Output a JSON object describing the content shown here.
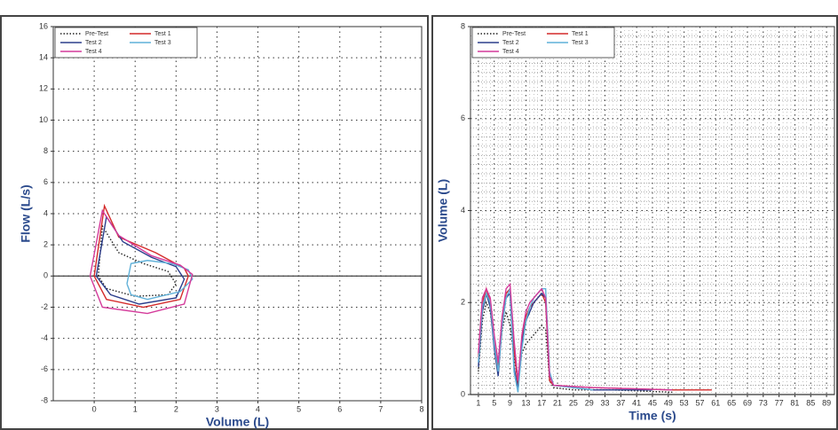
{
  "chart_data": [
    {
      "type": "line",
      "xlabel": "Volume (L)",
      "ylabel": "Flow (L/s)",
      "xlim": [
        -1,
        8
      ],
      "ylim": [
        -8,
        16
      ],
      "xticks": [
        0,
        1,
        2,
        3,
        4,
        5,
        6,
        7,
        8
      ],
      "yticks": [
        -8,
        -6,
        -4,
        -2,
        0,
        2,
        4,
        6,
        8,
        10,
        12,
        14,
        16
      ],
      "grid": true,
      "minor_grid": false,
      "legend": "upper-left",
      "series": [
        {
          "name": "Pre-Test",
          "color": "#222222",
          "style": "dotted",
          "x": [
            0.1,
            0.2,
            0.6,
            1.2,
            1.8,
            2.0,
            1.8,
            1.0,
            0.3,
            0.1
          ],
          "y": [
            0,
            3.2,
            1.5,
            0.8,
            0.3,
            -0.5,
            -1.2,
            -1.3,
            -0.8,
            0
          ]
        },
        {
          "name": "Test 1",
          "color": "#d42a2a",
          "style": "solid",
          "x": [
            0,
            0.25,
            0.6,
            1.5,
            2.2,
            2.3,
            2.1,
            1.2,
            0.3,
            0
          ],
          "y": [
            0,
            4.5,
            2.5,
            1.5,
            0.5,
            0,
            -1.5,
            -2.0,
            -1.5,
            0
          ]
        },
        {
          "name": "Test 2",
          "color": "#2c3e8c",
          "style": "solid",
          "x": [
            0.05,
            0.3,
            0.7,
            1.4,
            2.0,
            2.2,
            2.0,
            1.1,
            0.4,
            0.05
          ],
          "y": [
            0,
            3.8,
            2.2,
            1.2,
            0.6,
            -0.2,
            -1.4,
            -1.8,
            -1.2,
            0
          ]
        },
        {
          "name": "Test 3",
          "color": "#5fb0d8",
          "style": "solid",
          "x": [
            0.8,
            0.9,
            1.3,
            1.9,
            2.3,
            2.4,
            2.1,
            1.3,
            0.9,
            0.8
          ],
          "y": [
            -0.5,
            0.8,
            1.0,
            0.8,
            0.4,
            -0.2,
            -1.0,
            -1.5,
            -1.2,
            -0.5
          ]
        },
        {
          "name": "Test 4",
          "color": "#d43a9a",
          "style": "solid",
          "x": [
            -0.1,
            0.2,
            0.6,
            1.4,
            2.1,
            2.4,
            2.2,
            1.3,
            0.2,
            -0.1
          ],
          "y": [
            0,
            4.2,
            2.6,
            1.3,
            0.7,
            0.1,
            -1.8,
            -2.4,
            -2.0,
            0
          ]
        }
      ]
    },
    {
      "type": "line",
      "xlabel": "Time (s)",
      "ylabel": "Volume (L)",
      "xlim": [
        -1,
        91
      ],
      "ylim": [
        0,
        8
      ],
      "xticks": [
        1,
        5,
        9,
        13,
        17,
        21,
        25,
        29,
        33,
        37,
        41,
        45,
        49,
        53,
        57,
        61,
        65,
        69,
        73,
        77,
        81,
        85,
        89
      ],
      "yticks": [
        0,
        2,
        4,
        6,
        8
      ],
      "grid": true,
      "minor_grid": true,
      "legend": "upper-left",
      "series": [
        {
          "name": "Pre-Test",
          "color": "#222222",
          "style": "dotted",
          "x": [
            1,
            2,
            3,
            4,
            5,
            6,
            7,
            8,
            9,
            10,
            11,
            12,
            13,
            14,
            15,
            16,
            17,
            18,
            19,
            20,
            25,
            35,
            50
          ],
          "y": [
            0.5,
            1.6,
            2.0,
            1.8,
            1.2,
            0.6,
            1.4,
            1.8,
            1.5,
            0.8,
            0.3,
            0.9,
            1.1,
            1.2,
            1.3,
            1.4,
            1.5,
            1.4,
            0.3,
            0.15,
            0.1,
            0.1,
            0.05
          ]
        },
        {
          "name": "Test 1",
          "color": "#d42a2a",
          "style": "solid",
          "x": [
            1,
            2,
            3,
            4,
            5,
            6,
            7,
            8,
            9,
            10,
            11,
            12,
            13,
            14,
            15,
            16,
            17,
            18,
            19,
            20,
            30,
            50,
            60
          ],
          "y": [
            0.8,
            2.0,
            2.3,
            2.0,
            1.2,
            0.6,
            1.6,
            2.2,
            2.3,
            1.0,
            0.2,
            1.2,
            1.7,
            1.9,
            2.0,
            2.1,
            2.2,
            2.0,
            0.3,
            0.2,
            0.15,
            0.1,
            0.1
          ]
        },
        {
          "name": "Test 2",
          "color": "#2c3e8c",
          "style": "solid",
          "x": [
            1,
            2,
            3,
            4,
            5,
            6,
            7,
            8,
            9,
            10,
            11,
            12,
            13,
            14,
            15,
            16,
            17,
            18,
            19,
            20,
            30,
            45
          ],
          "y": [
            0.6,
            1.8,
            2.2,
            1.9,
            1.0,
            0.4,
            1.5,
            2.1,
            2.2,
            0.6,
            0.1,
            1.1,
            1.6,
            1.8,
            2.0,
            2.1,
            2.2,
            2.1,
            0.4,
            0.2,
            0.1,
            0.1
          ]
        },
        {
          "name": "Test 3",
          "color": "#5fb0d8",
          "style": "solid",
          "x": [
            1,
            2,
            3,
            4,
            5,
            6,
            7,
            8,
            9,
            10,
            11,
            12,
            13,
            14,
            15,
            16,
            17,
            18,
            19,
            20,
            30
          ],
          "y": [
            0.7,
            1.9,
            2.2,
            2.0,
            1.1,
            0.5,
            1.5,
            2.1,
            2.3,
            0.5,
            0.05,
            1.0,
            1.6,
            1.9,
            2.1,
            2.2,
            2.3,
            2.3,
            0.5,
            0.2,
            0.1
          ]
        },
        {
          "name": "Test 4",
          "color": "#d43a9a",
          "style": "solid",
          "x": [
            1,
            2,
            3,
            4,
            5,
            6,
            7,
            8,
            9,
            10,
            11,
            12,
            13,
            14,
            15,
            16,
            17,
            18,
            19,
            20,
            30,
            50
          ],
          "y": [
            0.9,
            2.1,
            2.3,
            2.1,
            1.3,
            0.7,
            1.7,
            2.3,
            2.4,
            1.2,
            0.3,
            1.3,
            1.8,
            2.0,
            2.1,
            2.2,
            2.3,
            2.1,
            0.4,
            0.2,
            0.15,
            0.1
          ]
        }
      ]
    }
  ]
}
